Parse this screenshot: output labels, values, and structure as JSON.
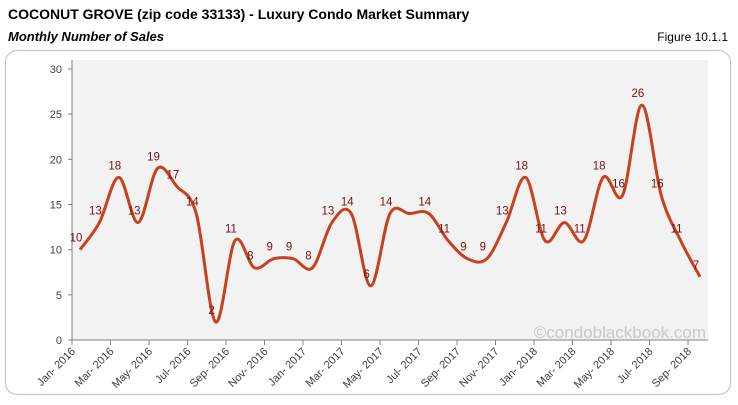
{
  "header": {
    "title": "COCONUT GROVE (zip code 33133) - Luxury Condo Market Summary",
    "subtitle": "Monthly Number of Sales",
    "figure": "Figure 10.1.1"
  },
  "watermark": "©condoblackbook.com",
  "chart_data": {
    "type": "line",
    "title": "Monthly Number of Sales",
    "xlabel": "",
    "ylabel": "",
    "ylim": [
      0,
      30
    ],
    "yticks": [
      0,
      5,
      10,
      15,
      20,
      25,
      30
    ],
    "grid": false,
    "smooth": true,
    "color": "#c8401e",
    "x_tick_labels": [
      "Jan- 2016",
      "Mar- 2016",
      "May- 2016",
      "Jul- 2016",
      "Sep- 2016",
      "Nov- 2016",
      "Jan- 2017",
      "Mar- 2017",
      "May- 2017",
      "Jul- 2017",
      "Sep- 2017",
      "Nov- 2017",
      "Jan- 2018",
      "Mar- 2018",
      "May- 2018",
      "Jul- 2018",
      "Sep- 2018"
    ],
    "x": [
      "Jan 2016",
      "Feb 2016",
      "Mar 2016",
      "Apr 2016",
      "May 2016",
      "Jun 2016",
      "Jul 2016",
      "Aug 2016",
      "Sep 2016",
      "Oct 2016",
      "Nov 2016",
      "Dec 2016",
      "Jan 2017",
      "Feb 2017",
      "Mar 2017",
      "Apr 2017",
      "May 2017",
      "Jun 2017",
      "Jul 2017",
      "Aug 2017",
      "Sep 2017",
      "Oct 2017",
      "Nov 2017",
      "Dec 2017",
      "Jan 2018",
      "Feb 2018",
      "Mar 2018",
      "Apr 2018",
      "May 2018",
      "Jun 2018",
      "Jul 2018",
      "Aug 2018",
      "Sep 2018"
    ],
    "values": [
      10,
      13,
      18,
      13,
      19,
      17,
      14,
      2,
      11,
      8,
      9,
      9,
      8,
      13,
      14,
      6,
      14,
      14,
      14,
      11,
      9,
      9,
      13,
      18,
      11,
      13,
      11,
      18,
      16,
      26,
      16,
      11,
      7
    ],
    "label_hidden": [
      17
    ]
  }
}
